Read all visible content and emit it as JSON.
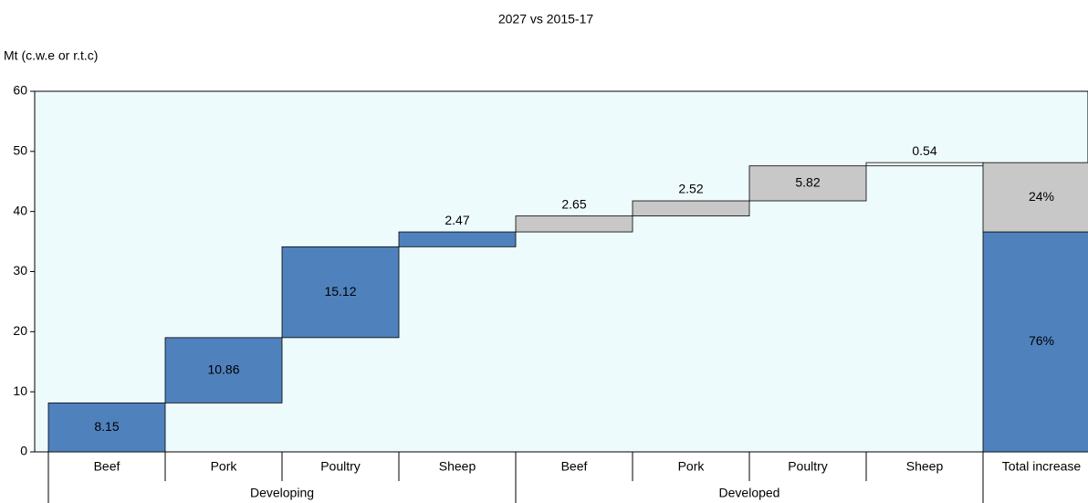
{
  "chart_data": {
    "type": "waterfall",
    "title": "2027 vs 2015-17",
    "y_label": "Mt (c.w.e or r.t.c)",
    "categories": [
      "Beef",
      "Pork",
      "Poultry",
      "Sheep",
      "Beef",
      "Pork",
      "Poultry",
      "Sheep",
      "Total increase"
    ],
    "series": [
      {
        "name": "Developing",
        "color": "#4f81bd",
        "values": [
          8.15,
          10.86,
          15.12,
          2.47,
          null,
          null,
          null,
          null,
          null
        ]
      },
      {
        "name": "Developed",
        "color": "#c8c8c8",
        "values": [
          null,
          null,
          null,
          null,
          2.65,
          2.52,
          5.82,
          0.54,
          null
        ]
      }
    ],
    "total": {
      "values": [
        76,
        24
      ],
      "value_labels": [
        "76%",
        "24%"
      ]
    },
    "ylim": [
      0,
      60
    ],
    "yticks": [
      0,
      10,
      20,
      30,
      40,
      50,
      60
    ],
    "grid": false,
    "background": "#eefbfd"
  }
}
